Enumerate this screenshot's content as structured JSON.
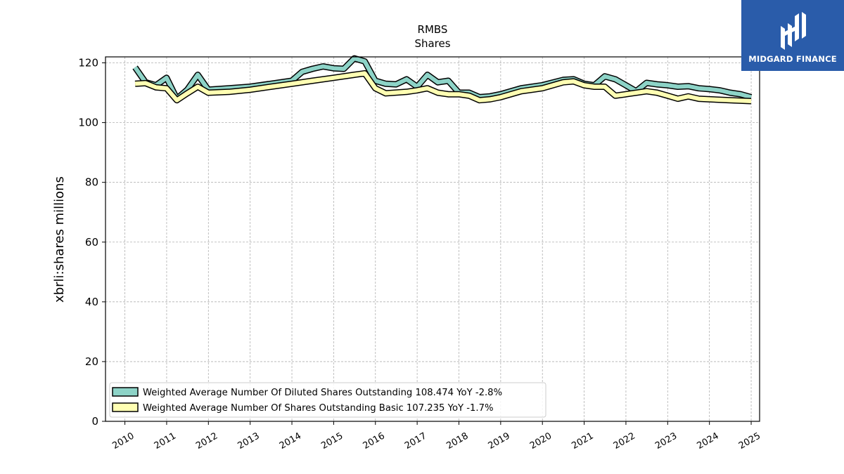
{
  "chart_data": {
    "type": "line",
    "title": "RMBS",
    "subtitle": "Shares",
    "ylabel": "xbrli:shares millions",
    "xlabel": "",
    "ylim": [
      0,
      122
    ],
    "xlim": [
      "2009-07-15",
      "2025-03-15"
    ],
    "yticks": [
      0,
      20,
      40,
      60,
      80,
      100,
      120
    ],
    "xticks": [
      "2010",
      "2011",
      "2012",
      "2013",
      "2014",
      "2015",
      "2016",
      "2017",
      "2018",
      "2019",
      "2020",
      "2021",
      "2022",
      "2023",
      "2024",
      "2025"
    ],
    "grid": true,
    "legend_position": "lower-left",
    "series": [
      {
        "name": "Weighted Average Number Of Diluted Shares Outstanding",
        "legend_label": "Weighted Average Number Of Diluted Shares Outstanding  108.474 YoY -2.8%",
        "color": "#8dd3c7",
        "points": [
          [
            "2010-03-31",
            118.5
          ],
          [
            "2010-06-30",
            113.5
          ],
          [
            "2010-09-30",
            112.5
          ],
          [
            "2010-12-31",
            115.0
          ],
          [
            "2011-03-31",
            108.0
          ],
          [
            "2011-06-30",
            111.0
          ],
          [
            "2011-09-30",
            116.0
          ],
          [
            "2011-12-31",
            111.0
          ],
          [
            "2012-06-30",
            111.5
          ],
          [
            "2012-12-31",
            112.0
          ],
          [
            "2013-06-30",
            113.0
          ],
          [
            "2013-12-31",
            114.0
          ],
          [
            "2014-03-31",
            117.0
          ],
          [
            "2014-06-30",
            118.0
          ],
          [
            "2014-09-30",
            118.8
          ],
          [
            "2014-12-31",
            118.2
          ],
          [
            "2015-03-31",
            118.0
          ],
          [
            "2015-06-30",
            121.5
          ],
          [
            "2015-09-30",
            120.5
          ],
          [
            "2015-12-31",
            114.0
          ],
          [
            "2016-03-31",
            113.0
          ],
          [
            "2016-06-30",
            112.8
          ],
          [
            "2016-09-30",
            114.5
          ],
          [
            "2016-12-31",
            112.0
          ],
          [
            "2017-03-31",
            116.0
          ],
          [
            "2017-06-30",
            113.5
          ],
          [
            "2017-09-30",
            114.0
          ],
          [
            "2017-12-31",
            110.0
          ],
          [
            "2018-03-31",
            110.0
          ],
          [
            "2018-06-30",
            108.5
          ],
          [
            "2018-09-30",
            108.8
          ],
          [
            "2018-12-31",
            109.5
          ],
          [
            "2019-06-30",
            111.5
          ],
          [
            "2019-12-31",
            112.5
          ],
          [
            "2020-06-30",
            114.3
          ],
          [
            "2020-09-30",
            114.5
          ],
          [
            "2020-12-31",
            113.0
          ],
          [
            "2021-03-31",
            112.5
          ],
          [
            "2021-06-30",
            115.5
          ],
          [
            "2021-09-30",
            114.5
          ],
          [
            "2021-12-31",
            112.5
          ],
          [
            "2022-03-31",
            110.5
          ],
          [
            "2022-06-30",
            113.3
          ],
          [
            "2022-09-30",
            112.8
          ],
          [
            "2022-12-31",
            112.5
          ],
          [
            "2023-03-31",
            112.0
          ],
          [
            "2023-06-30",
            112.2
          ],
          [
            "2023-09-30",
            111.5
          ],
          [
            "2023-12-31",
            111.2
          ],
          [
            "2024-03-31",
            110.8
          ],
          [
            "2024-06-30",
            110.0
          ],
          [
            "2024-09-30",
            109.5
          ],
          [
            "2024-12-31",
            108.5
          ]
        ]
      },
      {
        "name": "Weighted Average Number Of Shares Outstanding Basic",
        "legend_label": "Weighted Average Number Of Shares Outstanding Basic  107.235 YoY -1.7%",
        "color": "#ffffb3",
        "points": [
          [
            "2010-03-31",
            113.0
          ],
          [
            "2010-06-30",
            113.2
          ],
          [
            "2010-09-30",
            111.8
          ],
          [
            "2010-12-31",
            111.5
          ],
          [
            "2011-03-31",
            107.5
          ],
          [
            "2011-06-30",
            109.8
          ],
          [
            "2011-09-30",
            112.0
          ],
          [
            "2011-12-31",
            110.0
          ],
          [
            "2012-06-30",
            110.3
          ],
          [
            "2012-12-31",
            111.0
          ],
          [
            "2013-06-30",
            112.0
          ],
          [
            "2013-12-31",
            113.0
          ],
          [
            "2014-06-30",
            114.0
          ],
          [
            "2014-12-31",
            115.0
          ],
          [
            "2015-06-30",
            116.0
          ],
          [
            "2015-09-30",
            116.5
          ],
          [
            "2015-12-31",
            111.5
          ],
          [
            "2016-03-31",
            109.8
          ],
          [
            "2016-09-30",
            110.3
          ],
          [
            "2016-12-31",
            110.8
          ],
          [
            "2017-03-31",
            111.5
          ],
          [
            "2017-06-30",
            110.0
          ],
          [
            "2017-09-30",
            109.5
          ],
          [
            "2017-12-31",
            109.5
          ],
          [
            "2018-03-31",
            109.0
          ],
          [
            "2018-06-30",
            107.5
          ],
          [
            "2018-09-30",
            107.8
          ],
          [
            "2018-12-31",
            108.5
          ],
          [
            "2019-06-30",
            110.5
          ],
          [
            "2019-12-31",
            111.5
          ],
          [
            "2020-06-30",
            113.5
          ],
          [
            "2020-09-30",
            113.8
          ],
          [
            "2020-12-31",
            112.5
          ],
          [
            "2021-03-31",
            112.0
          ],
          [
            "2021-06-30",
            112.0
          ],
          [
            "2021-09-30",
            109.0
          ],
          [
            "2021-12-31",
            109.5
          ],
          [
            "2022-06-30",
            110.5
          ],
          [
            "2022-09-30",
            110.0
          ],
          [
            "2022-12-31",
            109.0
          ],
          [
            "2023-03-31",
            108.0
          ],
          [
            "2023-06-30",
            108.8
          ],
          [
            "2023-09-30",
            108.0
          ],
          [
            "2023-12-31",
            107.8
          ],
          [
            "2024-06-30",
            107.5
          ],
          [
            "2024-12-31",
            107.2
          ]
        ]
      }
    ]
  },
  "logo": {
    "text": "MIDGARD FINANCE",
    "background": "#2a5caa"
  }
}
